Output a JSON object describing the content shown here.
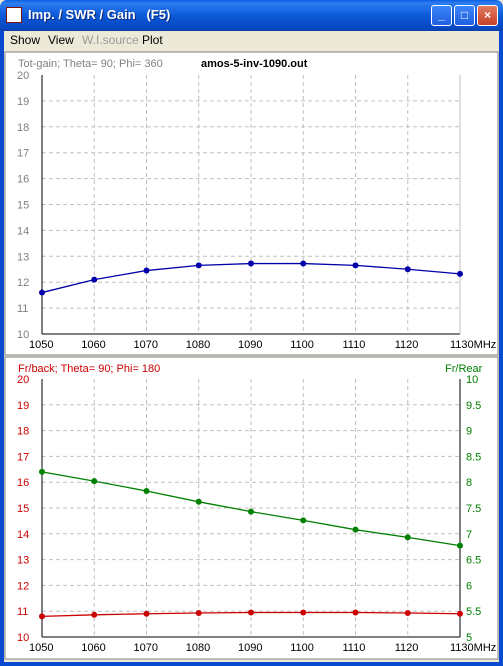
{
  "window": {
    "title": "Imp. / SWR / Gain   (F5)",
    "minimize_glyph": "_",
    "maximize_glyph": "□",
    "close_glyph": "×"
  },
  "menu": {
    "items": [
      {
        "label": "Show",
        "enabled": true
      },
      {
        "label": "View",
        "enabled": true
      },
      {
        "label": "W.I.source",
        "enabled": false
      },
      {
        "label": "Plot",
        "enabled": true
      }
    ]
  },
  "file_name": "amos-5-inv-1090.out",
  "colors": {
    "gain": "#0000AA",
    "frback": "#CC0000",
    "frrear": "#008000",
    "grid": "#C0C0C0"
  },
  "chart_data": [
    {
      "type": "line",
      "title": "Tot-gain; Theta= 90; Phi= 360",
      "x_unit": "MHz",
      "x": [
        1050,
        1060,
        1070,
        1080,
        1090,
        1100,
        1110,
        1120,
        1130
      ],
      "xlim": [
        1050,
        1130
      ],
      "ylim": [
        10,
        20
      ],
      "yticks": [
        10,
        11,
        12,
        13,
        14,
        15,
        16,
        17,
        18,
        19,
        20
      ],
      "grid": true,
      "series": [
        {
          "values": [
            11.6,
            12.1,
            12.45,
            12.65,
            12.72,
            12.72,
            12.65,
            12.5,
            12.32
          ]
        }
      ]
    },
    {
      "type": "line",
      "title": "Fr/back; Theta= 90; Phi= 180",
      "right_axis_label": "Fr/Rear",
      "x_unit": "MHz",
      "x": [
        1050,
        1060,
        1070,
        1080,
        1090,
        1100,
        1110,
        1120,
        1130
      ],
      "xlim": [
        1050,
        1130
      ],
      "ylim_left": [
        10,
        20
      ],
      "yticks_left": [
        10,
        11,
        12,
        13,
        14,
        15,
        16,
        17,
        18,
        19,
        20
      ],
      "ylim_right": [
        5,
        10
      ],
      "yticks_right": [
        "5",
        "5.5",
        "6",
        "6.5",
        "7",
        "7.5",
        "8",
        "8.5",
        "9",
        "9.5",
        "10"
      ],
      "grid": true,
      "series": [
        {
          "name": "Fr/back",
          "axis": "left",
          "values": [
            10.8,
            10.86,
            10.9,
            10.93,
            10.95,
            10.95,
            10.95,
            10.93,
            10.9
          ]
        },
        {
          "name": "Fr/Rear",
          "axis": "right",
          "values": [
            8.2,
            8.02,
            7.83,
            7.62,
            7.43,
            7.26,
            7.08,
            6.93,
            6.77
          ]
        }
      ]
    }
  ]
}
